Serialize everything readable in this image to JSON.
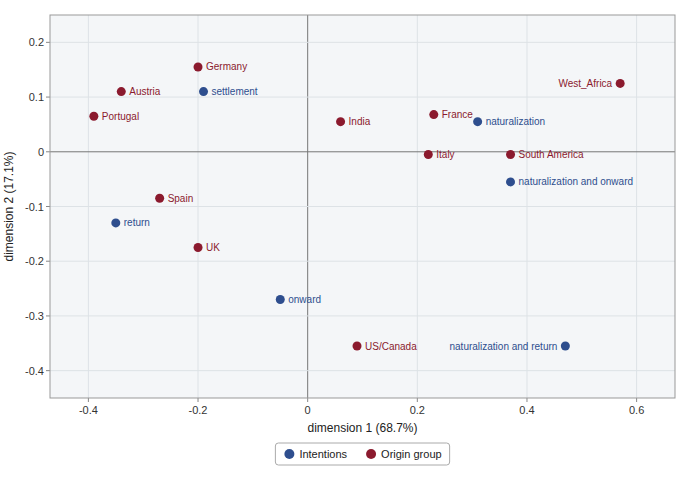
{
  "chart_data": {
    "type": "scatter",
    "xlabel": "dimension 1 (68.7%)",
    "ylabel": "dimension 2 (17.1%)",
    "xlim": [
      -0.47,
      0.67
    ],
    "ylim": [
      -0.45,
      0.25
    ],
    "xticks": [
      -0.4,
      -0.2,
      0,
      0.2,
      0.4,
      0.6
    ],
    "yticks": [
      -0.4,
      -0.3,
      -0.2,
      -0.1,
      0,
      0.1,
      0.2
    ],
    "grid": true,
    "legend": "bottom",
    "series": [
      {
        "name": "Intentions",
        "color": "#2E4E8E",
        "labels": [
          "settlement",
          "return",
          "onward",
          "naturalization",
          "naturalization and onward",
          "naturalization and return"
        ],
        "x": [
          -0.19,
          -0.35,
          -0.05,
          0.31,
          0.37,
          0.47
        ],
        "values": [
          0.11,
          -0.13,
          -0.27,
          0.055,
          -0.055,
          -0.355
        ]
      },
      {
        "name": "Origin group",
        "color": "#8B1A2E",
        "labels": [
          "Germany",
          "Austria",
          "Portugal",
          "Spain",
          "UK",
          "India",
          "France",
          "Italy",
          "US/Canada",
          "South America",
          "West_Africa"
        ],
        "x": [
          -0.2,
          -0.34,
          -0.39,
          -0.27,
          -0.2,
          0.06,
          0.23,
          0.22,
          0.09,
          0.37,
          0.57
        ],
        "values": [
          0.155,
          0.11,
          0.065,
          -0.085,
          -0.175,
          0.055,
          0.068,
          -0.005,
          -0.355,
          -0.005,
          0.125
        ]
      }
    ]
  }
}
